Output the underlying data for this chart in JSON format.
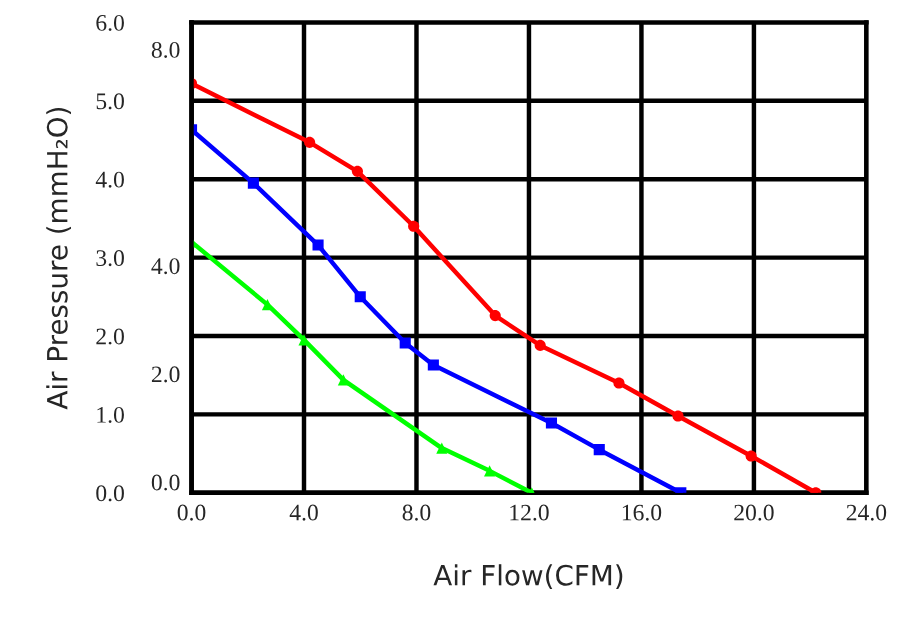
{
  "chart_data": {
    "type": "line",
    "xlabel": "Air Flow(CFM)",
    "ylabel": "Air Pressure (mmH₂O)",
    "xlim": [
      0,
      24
    ],
    "xticks": [
      {
        "value": 0,
        "label": "0.0"
      },
      {
        "value": 4,
        "label": "4.0"
      },
      {
        "value": 8,
        "label": "8.0"
      },
      {
        "value": 12,
        "label": "12.0"
      },
      {
        "value": 16,
        "label": "16.0"
      },
      {
        "value": 20,
        "label": "20.0"
      },
      {
        "value": 24,
        "label": "24.0"
      }
    ],
    "ylim": [
      0,
      6
    ],
    "yticks": [
      {
        "value": 0,
        "label": "0.0"
      },
      {
        "value": 1,
        "label": "1.0"
      },
      {
        "value": 2,
        "label": "2.0"
      },
      {
        "value": 3,
        "label": "3.0"
      },
      {
        "value": 4,
        "label": "4.0"
      },
      {
        "value": 5,
        "label": "5.0"
      },
      {
        "value": 6,
        "label": "6.0"
      }
    ],
    "y2lim": [
      -0.2,
      8.5
    ],
    "y2ticks": [
      {
        "value": 0,
        "label": "0.0"
      },
      {
        "value": 2,
        "label": "2.0"
      },
      {
        "value": 4,
        "label": "4.0"
      },
      {
        "value": 8,
        "label": "8.0"
      }
    ],
    "grid": true,
    "legend": false,
    "series": [
      {
        "color": "#ff0000",
        "marker": "circle",
        "x": [
          0,
          4.2,
          5.9,
          7.9,
          10.8,
          12.4,
          15.2,
          17.3,
          19.9,
          22.2
        ],
        "values": [
          5.22,
          4.47,
          4.1,
          3.4,
          2.26,
          1.88,
          1.4,
          0.98,
          0.47,
          0.0
        ]
      },
      {
        "color": "#0000ff",
        "marker": "square",
        "x": [
          0,
          2.2,
          4.5,
          6.0,
          7.6,
          8.6,
          12.8,
          14.5,
          17.4
        ],
        "values": [
          4.63,
          3.95,
          3.16,
          2.5,
          1.91,
          1.63,
          0.89,
          0.55,
          0.0
        ]
      },
      {
        "color": "#00ff00",
        "marker": "triangle",
        "x": [
          0,
          2.7,
          4.0,
          5.4,
          8.9,
          10.6,
          12.1
        ],
        "values": [
          3.2,
          2.4,
          1.95,
          1.44,
          0.57,
          0.28,
          0.0
        ]
      }
    ]
  }
}
